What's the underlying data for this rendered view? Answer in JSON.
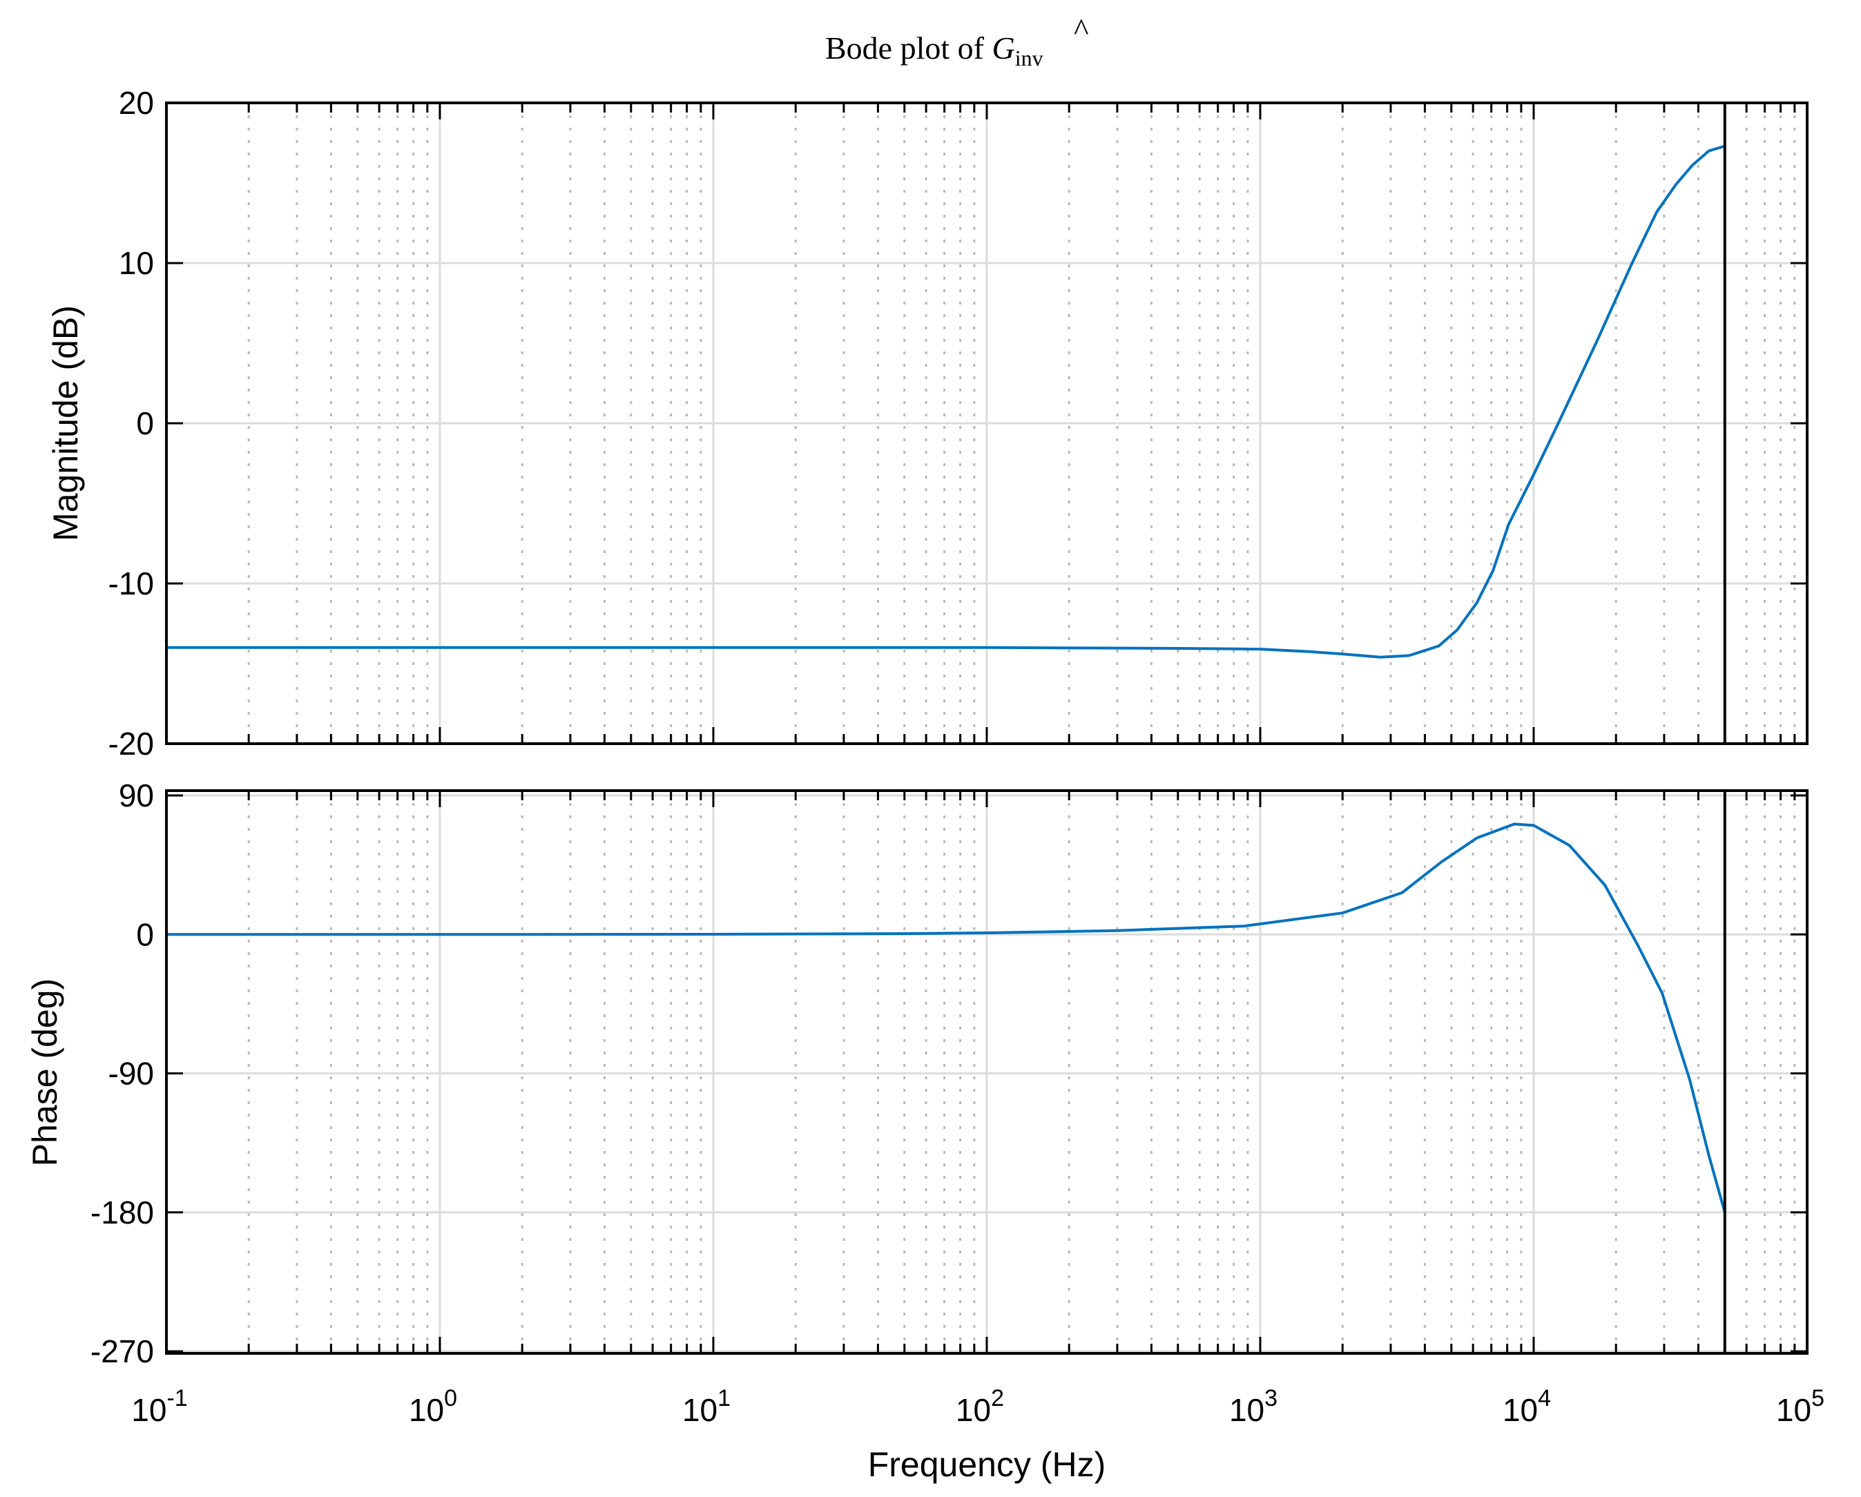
{
  "figure": {
    "title_text": "Bode plot of ",
    "title_symbol": "G",
    "title_hat": "^",
    "title_subscript": "inv",
    "colors": {
      "line": "#0072BD",
      "major_grid": "#DCDCDC",
      "minor_grid": "#B8B8B8",
      "axes": "#000000",
      "background": "#FFFFFF"
    }
  },
  "chart_data": [
    {
      "type": "line",
      "panel": "magnitude",
      "title": "Bode plot of Ĝ_inv",
      "xlabel": "Frequency  (Hz)",
      "ylabel": "Magnitude (dB)",
      "xscale": "log",
      "xlim": [
        0.1,
        100000
      ],
      "ylim": [
        -20,
        20
      ],
      "yticks": [
        -20,
        -10,
        0,
        10,
        20
      ],
      "ytick_labels": [
        "-20",
        "-10",
        "0",
        "10",
        "20"
      ],
      "grid": true,
      "minor_grid": true,
      "vertical_line_x": 50000,
      "series": [
        {
          "name": "Ghat_inv magnitude",
          "x": [
            0.1,
            1,
            10,
            100,
            500,
            1000,
            1500,
            2000,
            2750,
            3500,
            4500,
            5250,
            6200,
            7100,
            8100,
            10000,
            12300,
            17000,
            22900,
            28200,
            33100,
            38000,
            43700,
            50000
          ],
          "values": [
            -14.0,
            -14.0,
            -14.0,
            -14.0,
            -14.05,
            -14.1,
            -14.25,
            -14.4,
            -14.6,
            -14.5,
            -13.9,
            -12.9,
            -11.2,
            -9.2,
            -6.3,
            -3.2,
            0.0,
            5.1,
            10.0,
            13.2,
            14.9,
            16.1,
            17.0,
            17.3
          ]
        }
      ]
    },
    {
      "type": "line",
      "panel": "phase",
      "xlabel": "Frequency  (Hz)",
      "ylabel": "Phase (deg)",
      "xscale": "log",
      "xlim": [
        0.1,
        100000
      ],
      "ylim": [
        -270,
        90
      ],
      "yticks": [
        -270,
        -180,
        -90,
        0,
        90
      ],
      "ytick_labels": [
        "-270",
        "-180",
        "-90",
        "0",
        "90"
      ],
      "grid": true,
      "minor_grid": true,
      "vertical_line_x": 50000,
      "series": [
        {
          "name": "Ghat_inv phase",
          "x": [
            0.1,
            1,
            10,
            50,
            100,
            300,
            870,
            2000,
            3300,
            4600,
            6200,
            8500,
            10000,
            13500,
            18200,
            24000,
            29500,
            37200,
            43700,
            50000
          ],
          "values": [
            0.0,
            0.0,
            0.1,
            0.5,
            1.0,
            2.5,
            5.4,
            13.9,
            27.0,
            47.0,
            62.5,
            71.5,
            70.6,
            57.7,
            32.0,
            -6.8,
            -38.0,
            -94.0,
            -143.0,
            -180.0
          ]
        }
      ]
    }
  ],
  "x_axis": {
    "tick_values": [
      0.1,
      1,
      10,
      100,
      1000,
      10000,
      100000
    ],
    "tick_bases": [
      "10",
      "10",
      "10",
      "10",
      "10",
      "10",
      "10"
    ],
    "tick_exponents": [
      "-1",
      "0",
      "1",
      "2",
      "3",
      "4",
      "5"
    ],
    "label": "Frequency  (Hz)"
  },
  "labels": {
    "mag_ylabel": "Magnitude (dB)",
    "phase_ylabel": "Phase (deg)"
  }
}
